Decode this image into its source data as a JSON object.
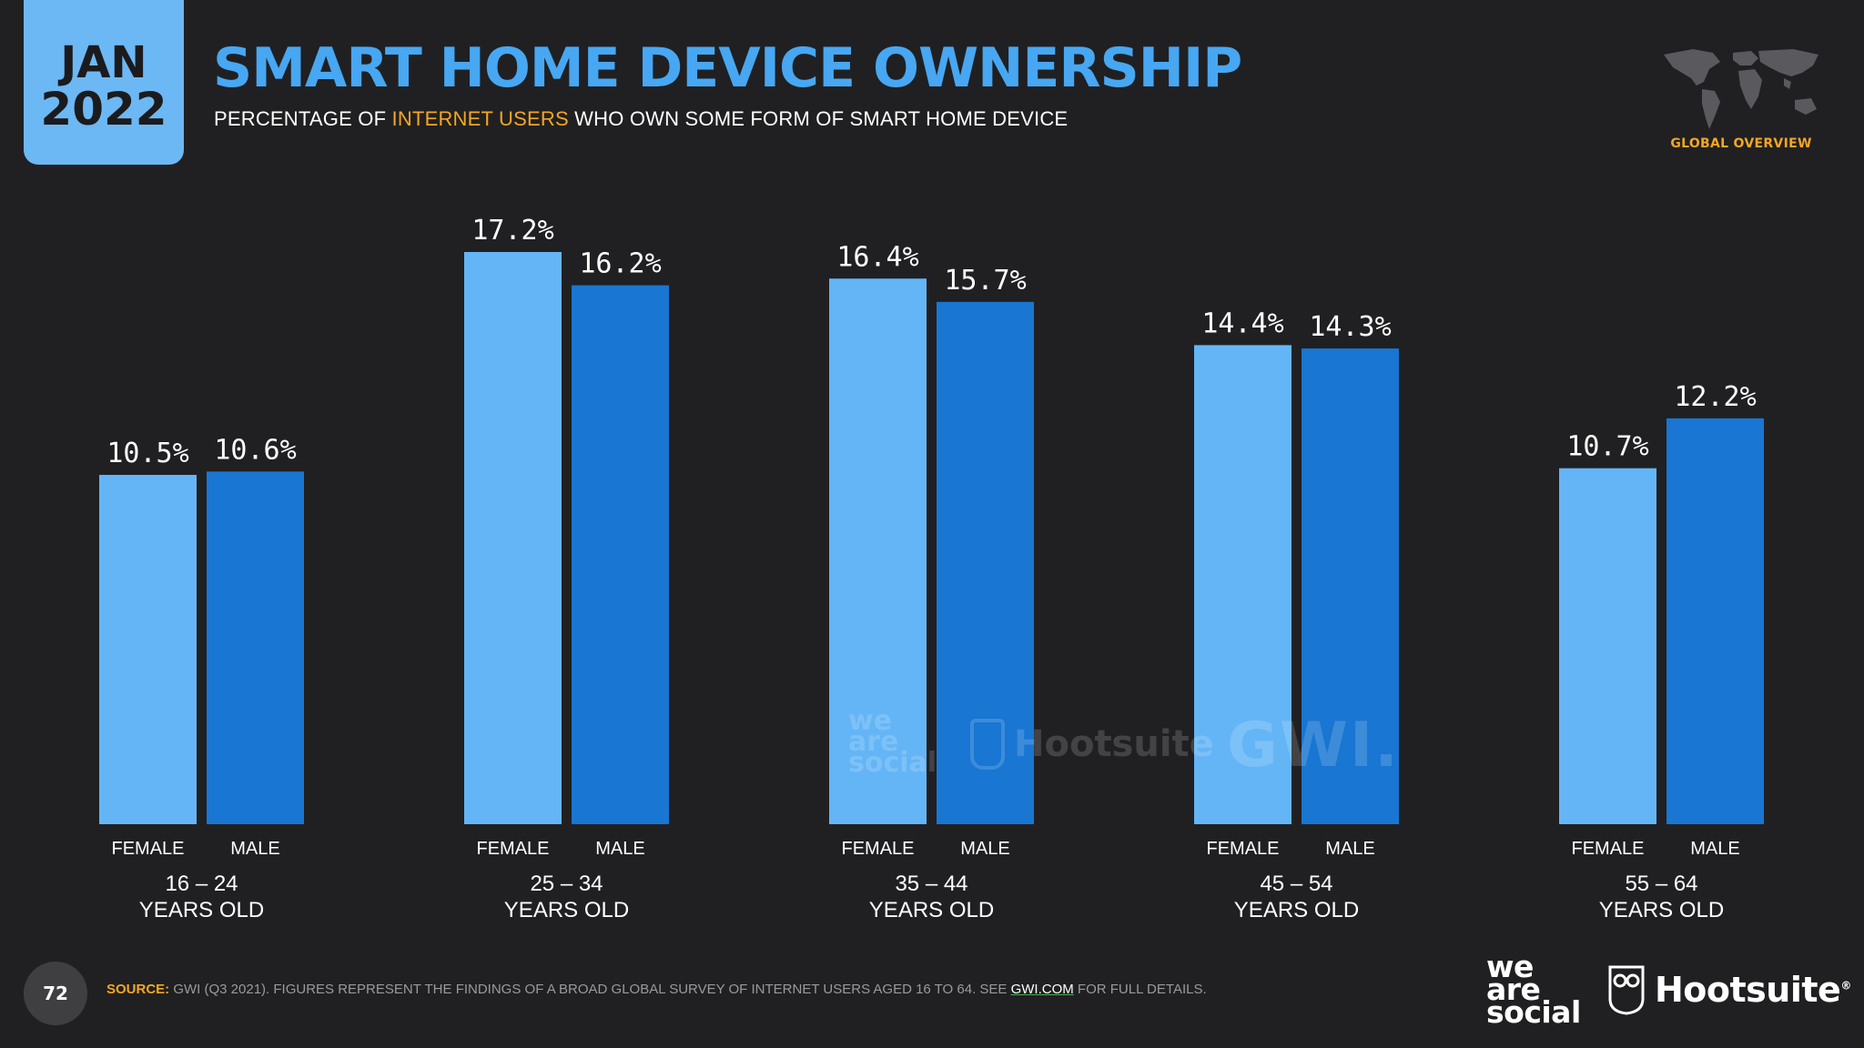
{
  "header": {
    "date_month": "JAN",
    "date_year": "2022",
    "title": "SMART HOME DEVICE OWNERSHIP",
    "subtitle_before": "PERCENTAGE OF ",
    "subtitle_highlight": "INTERNET USERS",
    "subtitle_after": " WHO OWN SOME FORM OF SMART HOME DEVICE",
    "badge": "GLOBAL OVERVIEW"
  },
  "colors": {
    "background": "#202022",
    "female": "#64b5f6",
    "male": "#1976d2",
    "title": "#47a7f2",
    "accent": "#f5a623"
  },
  "chart_data": {
    "type": "bar",
    "title": "SMART HOME DEVICE OWNERSHIP",
    "ylabel": "",
    "xlabel": "",
    "ylim": [
      0,
      20
    ],
    "categories": [
      "16 – 24 YEARS OLD",
      "25 – 34 YEARS OLD",
      "35 – 44 YEARS OLD",
      "45 – 54 YEARS OLD",
      "55 – 64 YEARS OLD"
    ],
    "groups": [
      {
        "age_range": "16 – 24",
        "age_suffix": "YEARS OLD"
      },
      {
        "age_range": "25 – 34",
        "age_suffix": "YEARS OLD"
      },
      {
        "age_range": "35 – 44",
        "age_suffix": "YEARS OLD"
      },
      {
        "age_range": "45 – 54",
        "age_suffix": "YEARS OLD"
      },
      {
        "age_range": "55 – 64",
        "age_suffix": "YEARS OLD"
      }
    ],
    "series": [
      {
        "name": "FEMALE",
        "values": [
          10.5,
          17.2,
          16.4,
          14.4,
          10.7
        ],
        "labels": [
          "10.5%",
          "17.2%",
          "16.4%",
          "14.4%",
          "10.7%"
        ]
      },
      {
        "name": "MALE",
        "values": [
          10.6,
          16.2,
          15.7,
          14.3,
          12.2
        ],
        "labels": [
          "10.6%",
          "16.2%",
          "15.7%",
          "14.3%",
          "12.2%"
        ]
      }
    ],
    "legend": "none"
  },
  "watermark": {
    "was_line1": "we",
    "was_line2": "are",
    "was_line3": "social",
    "hootsuite": "Hootsuite",
    "gwi": "GWI."
  },
  "footer": {
    "page_number": "72",
    "source_label": "SOURCE:",
    "source_text": " GWI (Q3 2021). FIGURES REPRESENT THE FINDINGS OF A BROAD GLOBAL SURVEY OF INTERNET USERS AGED 16 TO 64. SEE ",
    "source_link": "GWI.COM",
    "source_end": " FOR FULL DETAILS.",
    "logo_was_line1": "we",
    "logo_was_line2": "are",
    "logo_was_line3": "social",
    "logo_hootsuite": "Hootsuite",
    "logo_reg": "®"
  }
}
